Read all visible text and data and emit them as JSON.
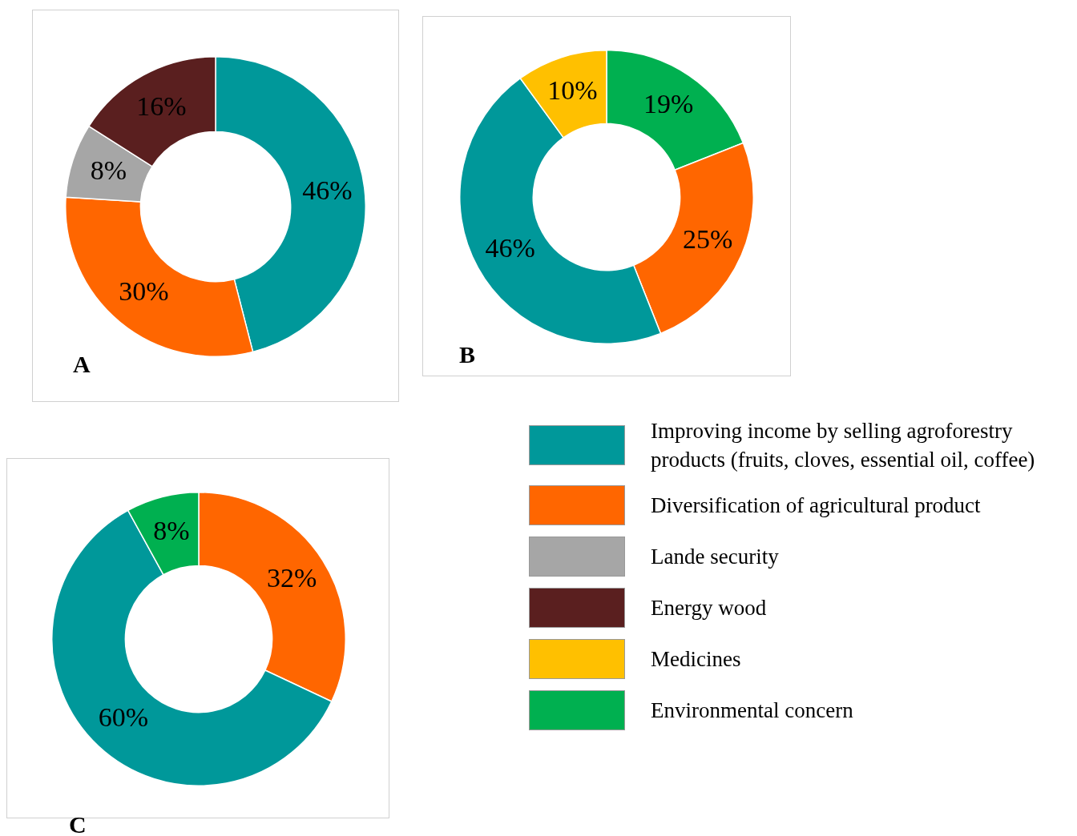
{
  "chart_data": [
    {
      "type": "donut",
      "categories": [
        "Improving income by selling agroforestry products (fruits, cloves, essential oil, coffee)",
        "Diversification of agricultural product",
        "Lande security",
        "Energy wood",
        "Medicines",
        "Environmental concern"
      ],
      "values": [
        46,
        30,
        8,
        16,
        null,
        null
      ],
      "colors": [
        "#00989a",
        "#ff6600",
        "#a6a6a6",
        "#5a1f1f",
        "#ffc000",
        "#00b050"
      ],
      "value_labels": [
        "46%",
        "30%",
        "8%",
        "16%",
        null,
        null
      ],
      "annotations": [
        "A"
      ],
      "legend": "bottom right"
    },
    {
      "type": "donut",
      "categories": [
        null,
        null,
        null,
        null
      ],
      "values": [
        19,
        25,
        46,
        10
      ],
      "colors": [
        "#00b050",
        "#ff6600",
        "#00989a",
        "#ffc000"
      ],
      "value_labels": [
        "19%",
        "25%",
        "46%",
        "10%"
      ],
      "annotations": [
        "B"
      ]
    },
    {
      "type": "donut",
      "categories": [
        null,
        null,
        null
      ],
      "values": [
        32,
        60,
        8
      ],
      "colors": [
        "#ff6600",
        "#00989a",
        "#00b050"
      ],
      "value_labels": [
        "32%",
        "60%",
        "8%"
      ],
      "annotations": [
        "C"
      ]
    }
  ]
}
